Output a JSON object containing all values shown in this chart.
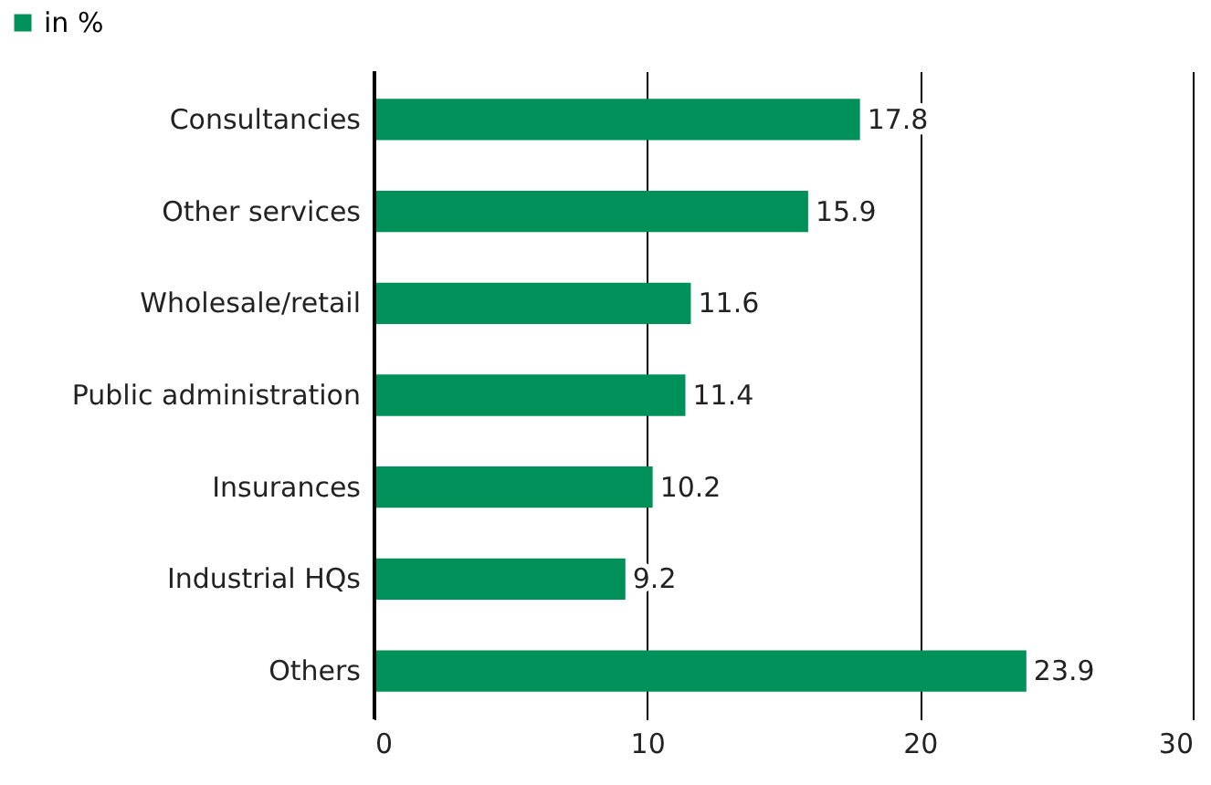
{
  "chart_data": {
    "type": "bar",
    "orientation": "horizontal",
    "categories": [
      "Consultancies",
      "Other services",
      "Wholesale/retail",
      "Public administration",
      "Insurances",
      "Industrial HQs",
      "Others"
    ],
    "series": [
      {
        "name": "in %",
        "color": "#00915a",
        "values": [
          17.8,
          15.9,
          11.6,
          11.4,
          10.2,
          9.2,
          23.9
        ]
      }
    ],
    "xlim": [
      0,
      30
    ],
    "xticks": [
      0,
      10,
      20,
      30
    ],
    "grid": "x",
    "legend": "top left",
    "data_labels": true
  }
}
